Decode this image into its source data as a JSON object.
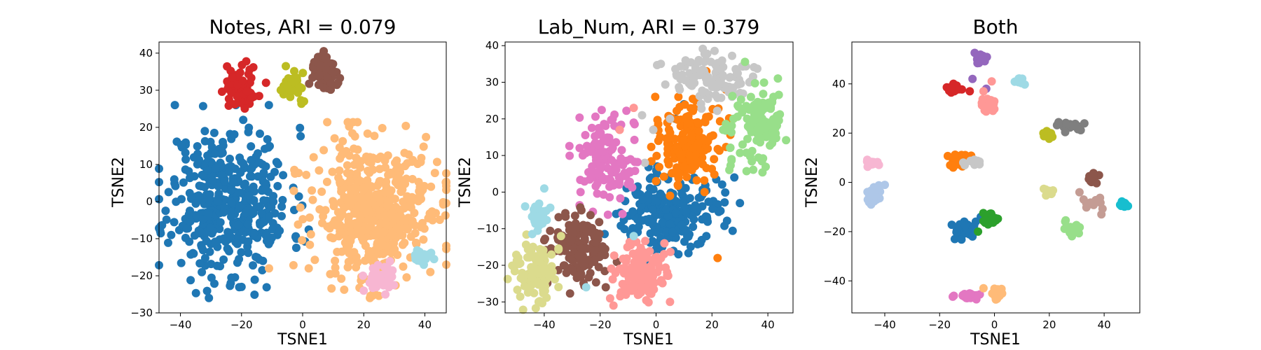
{
  "chart_data": [
    {
      "type": "scatter",
      "title": "Notes, ARI = 0.079",
      "xlabel": "TSNE1",
      "ylabel": "TSNE2",
      "xlim": [
        -47,
        47
      ],
      "ylim": [
        -30,
        43
      ],
      "xticks": [
        -40,
        -20,
        0,
        20,
        40
      ],
      "yticks": [
        -30,
        -20,
        -10,
        0,
        10,
        20,
        30,
        40
      ],
      "series": [
        {
          "color": "#1f77b4",
          "center": [
            -24,
            0
          ],
          "spread": [
            10,
            10
          ],
          "count": 420,
          "points": [
            [
              -42,
              6
            ],
            [
              -43,
              -9
            ],
            [
              -33,
              -19
            ],
            [
              -20,
              -23
            ],
            [
              -32,
              19
            ],
            [
              -11,
              -4
            ],
            [
              -13,
              -16
            ]
          ]
        },
        {
          "color": "#ffbb78",
          "center": [
            23,
            -2
          ],
          "spread": [
            10,
            9
          ],
          "count": 460,
          "points": [
            [
              3,
              3
            ],
            [
              2,
              -18
            ],
            [
              42,
              4
            ],
            [
              22,
              -26
            ],
            [
              18,
              14
            ],
            [
              -11,
              -18
            ]
          ]
        },
        {
          "color": "#d62728",
          "center": [
            -21,
            30
          ],
          "spread": [
            2.6,
            3
          ],
          "count": 60,
          "points": [
            [
              -12,
              32
            ]
          ]
        },
        {
          "color": "#bcbd22",
          "center": [
            -3,
            31
          ],
          "spread": [
            1.6,
            2.2
          ],
          "count": 40,
          "points": []
        },
        {
          "color": "#8c564b",
          "center": [
            7,
            35
          ],
          "spread": [
            2,
            2.5
          ],
          "count": 60,
          "points": []
        },
        {
          "color": "#f7b6d2",
          "center": [
            25,
            -21
          ],
          "spread": [
            2.5,
            2
          ],
          "count": 40,
          "points": [
            [
              20,
              -24
            ]
          ]
        },
        {
          "color": "#9edae5",
          "center": [
            39,
            -15
          ],
          "spread": [
            1.6,
            1.4
          ],
          "count": 20,
          "points": []
        }
      ]
    },
    {
      "type": "scatter",
      "title": "Lab_Num, ARI = 0.379",
      "xlabel": "TSNE1",
      "ylabel": "TSNE2",
      "xlim": [
        -54,
        49
      ],
      "ylim": [
        -33,
        41
      ],
      "xticks": [
        -40,
        -20,
        0,
        20,
        40
      ],
      "yticks": [
        -30,
        -20,
        -10,
        0,
        10,
        20,
        30,
        40
      ],
      "series": [
        {
          "color": "#1f77b4",
          "center": [
            5,
            -6
          ],
          "spread": [
            9,
            5
          ],
          "count": 220,
          "points": [
            [
              10,
              24
            ],
            [
              7,
              20
            ],
            [
              12,
              30
            ],
            [
              28,
              4
            ],
            [
              30,
              -3
            ],
            [
              8,
              -17
            ],
            [
              18,
              -12
            ]
          ]
        },
        {
          "color": "#ff7f0e",
          "center": [
            11,
            13
          ],
          "spread": [
            6,
            5
          ],
          "count": 170,
          "points": [
            [
              18,
              33
            ],
            [
              25,
              28
            ],
            [
              22,
              -18
            ],
            [
              0,
              3
            ],
            [
              5,
              -1
            ]
          ]
        },
        {
          "color": "#c7c7c7",
          "center": [
            20,
            31
          ],
          "spread": [
            8,
            3.5
          ],
          "count": 120,
          "points": [
            [
              -5,
              21
            ],
            [
              -1,
              17
            ],
            [
              5,
              20
            ],
            [
              -4,
              8
            ]
          ]
        },
        {
          "color": "#98df8a",
          "center": [
            36,
            18
          ],
          "spread": [
            5,
            7
          ],
          "count": 110,
          "points": [
            [
              42,
              26
            ],
            [
              27,
              9
            ],
            [
              24,
              17
            ]
          ]
        },
        {
          "color": "#e377c2",
          "center": [
            -18,
            9
          ],
          "spread": [
            5,
            6
          ],
          "count": 120,
          "points": [
            [
              -27,
              0
            ],
            [
              -8,
              19
            ],
            [
              -12,
              -6
            ]
          ]
        },
        {
          "color": "#8c564b",
          "center": [
            -27,
            -15
          ],
          "spread": [
            5,
            5
          ],
          "count": 140,
          "points": [
            [
              -35,
              -13
            ],
            [
              -18,
              -26
            ]
          ]
        },
        {
          "color": "#ff9896",
          "center": [
            -5,
            -22
          ],
          "spread": [
            5,
            4
          ],
          "count": 130,
          "points": [
            [
              -13,
              17
            ],
            [
              -8,
              23
            ],
            [
              3,
              -14
            ],
            [
              5,
              -30
            ]
          ]
        },
        {
          "color": "#dbdb8d",
          "center": [
            -44,
            -22
          ],
          "spread": [
            3.5,
            4
          ],
          "count": 110,
          "points": [
            [
              -42,
              -30
            ],
            [
              -34,
              -12
            ]
          ]
        },
        {
          "color": "#9edae5",
          "center": [
            -43,
            -7
          ],
          "spread": [
            2,
            2
          ],
          "count": 30,
          "points": [
            [
              -25,
              -26
            ],
            [
              -8,
              -12
            ],
            [
              -40,
              1
            ]
          ]
        }
      ]
    },
    {
      "type": "scatter",
      "title": "Both",
      "xlabel": "TSNE1",
      "ylabel": "TSNE2",
      "xlim": [
        -52,
        53
      ],
      "ylim": [
        -53,
        57
      ],
      "xticks": [
        -40,
        -20,
        0,
        20,
        40
      ],
      "yticks": [
        -40,
        -20,
        0,
        20,
        40
      ],
      "series": [
        {
          "color": "#9467bd",
          "center": [
            -5,
            50
          ],
          "spread": [
            1,
            1
          ],
          "count": 25,
          "points": [
            [
              -8,
              42
            ],
            [
              -3,
              38
            ]
          ]
        },
        {
          "color": "#9edae5",
          "center": [
            9,
            41
          ],
          "spread": [
            0.8,
            0.6
          ],
          "count": 12,
          "points": []
        },
        {
          "color": "#d62728",
          "center": [
            -15,
            38
          ],
          "spread": [
            1.2,
            0.8
          ],
          "count": 30,
          "points": [
            [
              -9,
              37
            ]
          ]
        },
        {
          "color": "#ff9896",
          "center": [
            -2,
            31
          ],
          "spread": [
            1,
            1.5
          ],
          "count": 30,
          "points": [
            [
              -4,
              37
            ],
            [
              -1,
              41
            ]
          ]
        },
        {
          "color": "#7f7f7f",
          "center": [
            27,
            23
          ],
          "spread": [
            2.5,
            1
          ],
          "count": 20,
          "points": []
        },
        {
          "color": "#bcbd22",
          "center": [
            20,
            19
          ],
          "spread": [
            1,
            0.8
          ],
          "count": 14,
          "points": []
        },
        {
          "color": "#ff7f0e",
          "center": [
            -14,
            9
          ],
          "spread": [
            2.5,
            1.6
          ],
          "count": 30,
          "points": []
        },
        {
          "color": "#c7c7c7",
          "center": [
            -8,
            8
          ],
          "spread": [
            1.3,
            0.7
          ],
          "count": 16,
          "points": []
        },
        {
          "color": "#f7b6d2",
          "center": [
            -44,
            8
          ],
          "spread": [
            1.2,
            1
          ],
          "count": 14,
          "points": []
        },
        {
          "color": "#aec7e8",
          "center": [
            -44,
            -5
          ],
          "spread": [
            1.4,
            2.2
          ],
          "count": 30,
          "points": [
            [
              -40,
              -1
            ]
          ]
        },
        {
          "color": "#dbdb8d",
          "center": [
            20,
            -4
          ],
          "spread": [
            0.9,
            0.8
          ],
          "count": 10,
          "points": []
        },
        {
          "color": "#8c564b",
          "center": [
            36,
            2
          ],
          "spread": [
            0.9,
            0.9
          ],
          "count": 16,
          "points": []
        },
        {
          "color": "#c49c94",
          "center": [
            35,
            -9
          ],
          "spread": [
            2.5,
            2.5
          ],
          "count": 12,
          "points": [
            [
              31,
              -4
            ],
            [
              39,
              -13
            ]
          ]
        },
        {
          "color": "#17becf",
          "center": [
            47,
            -9
          ],
          "spread": [
            0.8,
            0.7
          ],
          "count": 12,
          "points": []
        },
        {
          "color": "#1f77b4",
          "center": [
            -12,
            -19
          ],
          "spread": [
            2,
            2
          ],
          "count": 30,
          "points": [
            [
              -5,
              -14
            ],
            [
              -8,
              -22
            ]
          ]
        },
        {
          "color": "#2ca02c",
          "center": [
            -2,
            -15
          ],
          "spread": [
            1.5,
            1
          ],
          "count": 24,
          "points": [
            [
              -6,
              -20
            ]
          ]
        },
        {
          "color": "#98df8a",
          "center": [
            28,
            -19
          ],
          "spread": [
            1.8,
            1.5
          ],
          "count": 22,
          "points": []
        },
        {
          "color": "#e377c2",
          "center": [
            -10,
            -46
          ],
          "spread": [
            2,
            1
          ],
          "count": 26,
          "points": []
        },
        {
          "color": "#ffbb78",
          "center": [
            1,
            -45
          ],
          "spread": [
            1,
            1.4
          ],
          "count": 24,
          "points": [
            [
              -4,
              -43
            ]
          ]
        }
      ]
    }
  ]
}
